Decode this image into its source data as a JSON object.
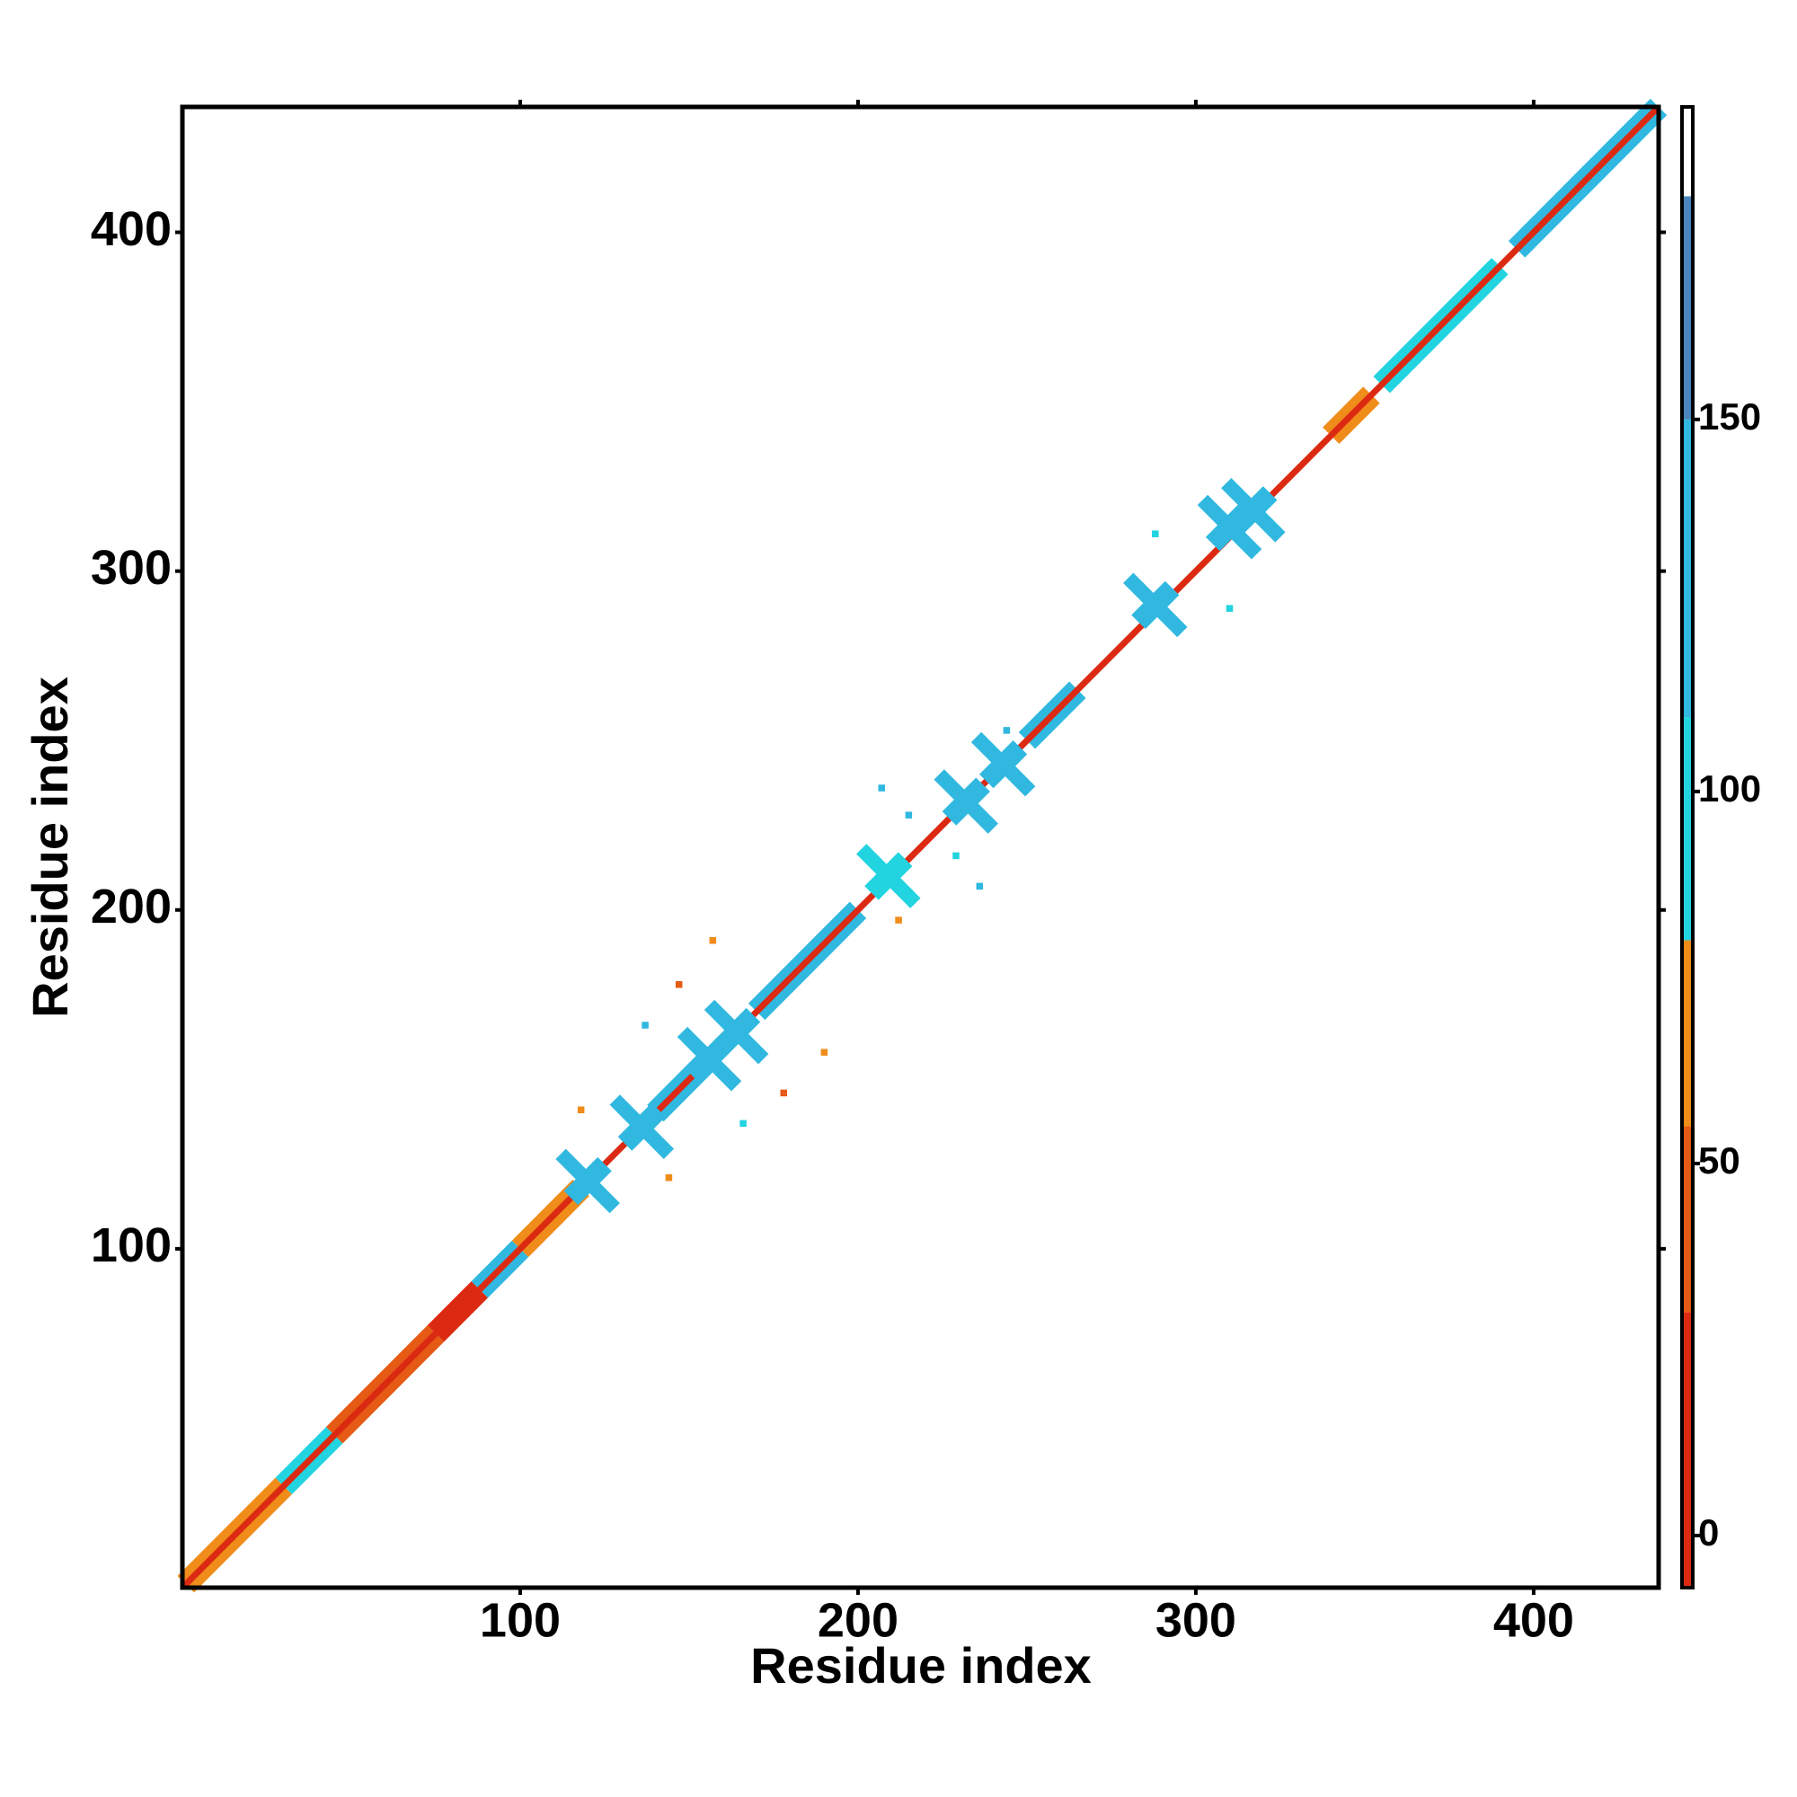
{
  "chart_data": {
    "type": "heatmap",
    "xlabel": "Residue index",
    "ylabel": "Residue index",
    "xlim": [
      0,
      437
    ],
    "ylim": [
      0,
      437
    ],
    "xticks": [
      100,
      200,
      300,
      400
    ],
    "yticks": [
      100,
      200,
      300,
      400
    ],
    "colorbar": {
      "lim": [
        -7,
        192
      ],
      "ticks": [
        0,
        50,
        100,
        150
      ],
      "bands": [
        {
          "from": -7,
          "to": 30,
          "color": "#dc2a12"
        },
        {
          "from": 30,
          "to": 55,
          "color": "#e55a14"
        },
        {
          "from": 55,
          "to": 80,
          "color": "#f08c1a"
        },
        {
          "from": 80,
          "to": 110,
          "color": "#22d3e0"
        },
        {
          "from": 110,
          "to": 150,
          "color": "#30b8e0"
        },
        {
          "from": 150,
          "to": 180,
          "color": "#4a86bd"
        },
        {
          "from": 180,
          "to": 192,
          "color": "#ffffff"
        }
      ]
    },
    "segments": [
      {
        "start": 1,
        "end": 30,
        "value": 60
      },
      {
        "start": 30,
        "end": 45,
        "value": 110
      },
      {
        "start": 45,
        "end": 75,
        "value": 40
      },
      {
        "start": 75,
        "end": 88,
        "value": 20
      },
      {
        "start": 88,
        "end": 100,
        "value": 140
      },
      {
        "start": 100,
        "end": 118,
        "value": 60
      },
      {
        "start": 140,
        "end": 155,
        "value": 120
      },
      {
        "start": 170,
        "end": 200,
        "value": 130
      },
      {
        "start": 250,
        "end": 265,
        "value": 120
      },
      {
        "start": 340,
        "end": 352,
        "value": 60
      },
      {
        "start": 355,
        "end": 390,
        "value": 110
      },
      {
        "start": 395,
        "end": 437,
        "value": 120
      },
      {
        "start": 0,
        "end": 437,
        "value": 15
      }
    ],
    "crosses": [
      {
        "x": 120,
        "y": 120,
        "value": 130
      },
      {
        "x": 136,
        "y": 136,
        "value": 130
      },
      {
        "x": 156,
        "y": 156,
        "value": 120
      },
      {
        "x": 164,
        "y": 164,
        "value": 130
      },
      {
        "x": 209,
        "y": 210,
        "value": 100
      },
      {
        "x": 232,
        "y": 232,
        "value": 140
      },
      {
        "x": 243,
        "y": 243,
        "value": 130
      },
      {
        "x": 288,
        "y": 290,
        "value": 140
      },
      {
        "x": 310,
        "y": 313,
        "value": 145
      },
      {
        "x": 317,
        "y": 318,
        "value": 130
      }
    ],
    "spots": [
      {
        "x": 118,
        "y": 141,
        "value": 60
      },
      {
        "x": 144,
        "y": 121,
        "value": 60
      },
      {
        "x": 147,
        "y": 178,
        "value": 40
      },
      {
        "x": 157,
        "y": 191,
        "value": 60
      },
      {
        "x": 137,
        "y": 166,
        "value": 150
      },
      {
        "x": 178,
        "y": 146,
        "value": 40
      },
      {
        "x": 166,
        "y": 137,
        "value": 100
      },
      {
        "x": 190,
        "y": 158,
        "value": 60
      },
      {
        "x": 207,
        "y": 236,
        "value": 150
      },
      {
        "x": 215,
        "y": 228,
        "value": 150
      },
      {
        "x": 236,
        "y": 207,
        "value": 150
      },
      {
        "x": 229,
        "y": 216,
        "value": 100
      },
      {
        "x": 288,
        "y": 311,
        "value": 100
      },
      {
        "x": 310,
        "y": 289,
        "value": 100
      },
      {
        "x": 244,
        "y": 253,
        "value": 150
      },
      {
        "x": 212,
        "y": 197,
        "value": 60
      }
    ]
  }
}
